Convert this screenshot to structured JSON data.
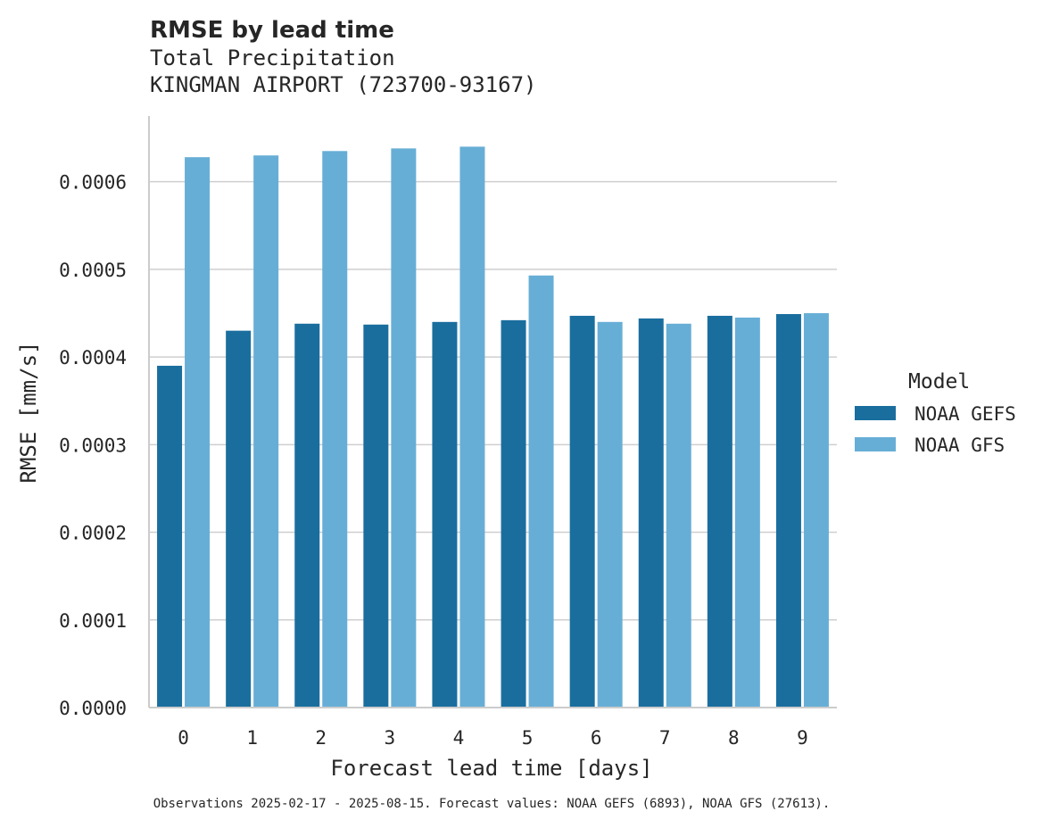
{
  "chart_data": {
    "type": "bar",
    "title": "RMSE by lead time",
    "subtitle_lines": [
      "Total Precipitation",
      "KINGMAN AIRPORT (723700-93167)"
    ],
    "xlabel": "Forecast lead time [days]",
    "ylabel": "RMSE [mm/s]",
    "categories": [
      "0",
      "1",
      "2",
      "3",
      "4",
      "5",
      "6",
      "7",
      "8",
      "9"
    ],
    "series": [
      {
        "name": "NOAA GEFS",
        "color": "#1a6e9e",
        "values": [
          0.00039,
          0.00043,
          0.000438,
          0.000437,
          0.00044,
          0.000442,
          0.000447,
          0.000444,
          0.000447,
          0.000449
        ]
      },
      {
        "name": "NOAA GFS",
        "color": "#67aed6",
        "values": [
          0.000628,
          0.00063,
          0.000635,
          0.000638,
          0.00064,
          0.000493,
          0.00044,
          0.000438,
          0.000445,
          0.00045
        ]
      }
    ],
    "ylim": [
      0,
      0.000675
    ],
    "yticks": [
      0,
      0.0001,
      0.0002,
      0.0003,
      0.0004,
      0.0005,
      0.0006
    ],
    "ytick_labels": [
      "0.0000",
      "0.0001",
      "0.0002",
      "0.0003",
      "0.0004",
      "0.0005",
      "0.0006"
    ],
    "grid": "y",
    "legend": {
      "title": "Model",
      "placement": "right",
      "entries": [
        "NOAA GEFS",
        "NOAA GFS"
      ]
    },
    "footnote": "Observations 2025-02-17 - 2025-08-15. Forecast values: NOAA GEFS (6893), NOAA GFS (27613)."
  },
  "colors": {
    "grid": "#cfcfcf",
    "spine": "#cccccc",
    "text": "#262626"
  }
}
